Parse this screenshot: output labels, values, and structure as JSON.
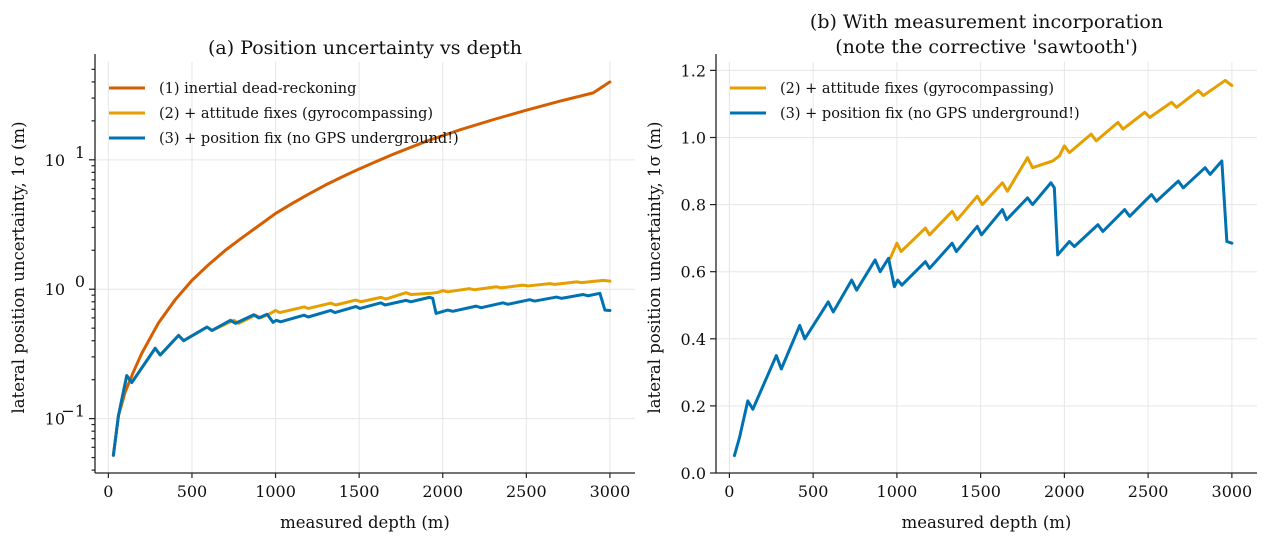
{
  "chart_data": [
    {
      "type": "line",
      "title": "(a) Position uncertainty vs depth",
      "xlabel": "measured depth (m)",
      "ylabel": "lateral position uncertainty, 1σ (m)",
      "xlim": [
        -80,
        3150
      ],
      "ylim": [
        0.038,
        57
      ],
      "yscale": "log",
      "xticks": [
        0,
        500,
        1000,
        1500,
        2000,
        2500,
        3000
      ],
      "xtick_labels": [
        "0",
        "500",
        "1000",
        "1500",
        "2000",
        "2500",
        "3000"
      ],
      "yticks": [
        0.1,
        1,
        10
      ],
      "ytick_labels": [
        {
          "base": "10",
          "exp": "−1"
        },
        {
          "base": "10",
          "exp": "0"
        },
        {
          "base": "10",
          "exp": "1"
        }
      ],
      "grid": true,
      "legend_position": "upper-left",
      "series": [
        {
          "name": "(1) inertial dead-reckoning",
          "color": "#D55E00",
          "points": [
            [
              30,
              0.052
            ],
            [
              60,
              0.105
            ],
            [
              100,
              0.16
            ],
            [
              150,
              0.23
            ],
            [
              200,
              0.32
            ],
            [
              300,
              0.55
            ],
            [
              400,
              0.83
            ],
            [
              500,
              1.17
            ],
            [
              600,
              1.55
            ],
            [
              700,
              2.0
            ],
            [
              800,
              2.5
            ],
            [
              900,
              3.1
            ],
            [
              1000,
              3.85
            ],
            [
              1100,
              4.6
            ],
            [
              1200,
              5.45
            ],
            [
              1300,
              6.4
            ],
            [
              1400,
              7.4
            ],
            [
              1500,
              8.5
            ],
            [
              1700,
              11.0
            ],
            [
              1900,
              13.9
            ],
            [
              2100,
              17.0
            ],
            [
              2300,
              20.4
            ],
            [
              2500,
              24.2
            ],
            [
              2700,
              28.4
            ],
            [
              2900,
              32.9
            ],
            [
              3000,
              40.0
            ]
          ]
        },
        {
          "name": "(2) + attitude fixes (gyrocompassing)",
          "color": "#E69F00",
          "points": [
            [
              30,
              0.052
            ],
            [
              60,
              0.105
            ],
            [
              110,
              0.215
            ],
            [
              140,
              0.19
            ],
            [
              280,
              0.35
            ],
            [
              310,
              0.31
            ],
            [
              420,
              0.44
            ],
            [
              450,
              0.4
            ],
            [
              590,
              0.51
            ],
            [
              620,
              0.48
            ],
            [
              750,
              0.575
            ],
            [
              780,
              0.545
            ],
            [
              880,
              0.63
            ],
            [
              910,
              0.6
            ],
            [
              960,
              0.64
            ],
            [
              1000,
              0.685
            ],
            [
              1025,
              0.66
            ],
            [
              1170,
              0.73
            ],
            [
              1195,
              0.71
            ],
            [
              1330,
              0.78
            ],
            [
              1360,
              0.755
            ],
            [
              1480,
              0.825
            ],
            [
              1510,
              0.8
            ],
            [
              1630,
              0.865
            ],
            [
              1660,
              0.84
            ],
            [
              1780,
              0.94
            ],
            [
              1810,
              0.91
            ],
            [
              1930,
              0.93
            ],
            [
              1970,
              0.945
            ],
            [
              2000,
              0.975
            ],
            [
              2030,
              0.955
            ],
            [
              2160,
              1.01
            ],
            [
              2190,
              0.99
            ],
            [
              2320,
              1.045
            ],
            [
              2350,
              1.025
            ],
            [
              2480,
              1.075
            ],
            [
              2510,
              1.06
            ],
            [
              2640,
              1.105
            ],
            [
              2670,
              1.09
            ],
            [
              2800,
              1.14
            ],
            [
              2830,
              1.125
            ],
            [
              2960,
              1.17
            ],
            [
              3000,
              1.155
            ]
          ]
        },
        {
          "name": "(3) + position fix (no GPS underground!)",
          "color": "#0072B2",
          "points": [
            [
              30,
              0.052
            ],
            [
              60,
              0.105
            ],
            [
              110,
              0.215
            ],
            [
              140,
              0.19
            ],
            [
              280,
              0.35
            ],
            [
              310,
              0.31
            ],
            [
              420,
              0.44
            ],
            [
              450,
              0.4
            ],
            [
              590,
              0.51
            ],
            [
              620,
              0.48
            ],
            [
              730,
              0.575
            ],
            [
              760,
              0.545
            ],
            [
              870,
              0.635
            ],
            [
              900,
              0.6
            ],
            [
              950,
              0.64
            ],
            [
              985,
              0.555
            ],
            [
              1005,
              0.575
            ],
            [
              1030,
              0.56
            ],
            [
              1170,
              0.63
            ],
            [
              1195,
              0.61
            ],
            [
              1330,
              0.685
            ],
            [
              1355,
              0.66
            ],
            [
              1480,
              0.735
            ],
            [
              1505,
              0.71
            ],
            [
              1630,
              0.785
            ],
            [
              1655,
              0.755
            ],
            [
              1780,
              0.82
            ],
            [
              1810,
              0.8
            ],
            [
              1920,
              0.865
            ],
            [
              1940,
              0.85
            ],
            [
              1960,
              0.65
            ],
            [
              2030,
              0.69
            ],
            [
              2060,
              0.675
            ],
            [
              2200,
              0.74
            ],
            [
              2230,
              0.72
            ],
            [
              2360,
              0.785
            ],
            [
              2390,
              0.765
            ],
            [
              2520,
              0.83
            ],
            [
              2550,
              0.81
            ],
            [
              2680,
              0.87
            ],
            [
              2710,
              0.85
            ],
            [
              2840,
              0.91
            ],
            [
              2870,
              0.89
            ],
            [
              2940,
              0.93
            ],
            [
              2970,
              0.69
            ],
            [
              3000,
              0.685
            ]
          ]
        }
      ]
    },
    {
      "type": "line",
      "title": "(b) With measurement incorporation",
      "subtitle": "(note the corrective 'sawtooth')",
      "xlabel": "measured depth (m)",
      "ylabel": "lateral position uncertainty, 1σ (m)",
      "xlim": [
        -80,
        3150
      ],
      "ylim": [
        0,
        1.225
      ],
      "yscale": "linear",
      "xticks": [
        0,
        500,
        1000,
        1500,
        2000,
        2500,
        3000
      ],
      "xtick_labels": [
        "0",
        "500",
        "1000",
        "1500",
        "2000",
        "2500",
        "3000"
      ],
      "yticks": [
        0.0,
        0.2,
        0.4,
        0.6,
        0.8,
        1.0,
        1.2
      ],
      "ytick_labels": [
        "0.0",
        "0.2",
        "0.4",
        "0.6",
        "0.8",
        "1.0",
        "1.2"
      ],
      "grid": true,
      "legend_position": "upper-left",
      "series": [
        {
          "name": "(2) + attitude fixes (gyrocompassing)",
          "color": "#E69F00",
          "points": [
            [
              960,
              0.64
            ],
            [
              1000,
              0.685
            ],
            [
              1025,
              0.66
            ],
            [
              1170,
              0.73
            ],
            [
              1195,
              0.71
            ],
            [
              1330,
              0.78
            ],
            [
              1360,
              0.755
            ],
            [
              1480,
              0.825
            ],
            [
              1510,
              0.8
            ],
            [
              1630,
              0.865
            ],
            [
              1660,
              0.84
            ],
            [
              1780,
              0.94
            ],
            [
              1810,
              0.91
            ],
            [
              1930,
              0.93
            ],
            [
              1970,
              0.945
            ],
            [
              2000,
              0.975
            ],
            [
              2030,
              0.955
            ],
            [
              2160,
              1.01
            ],
            [
              2190,
              0.99
            ],
            [
              2320,
              1.045
            ],
            [
              2350,
              1.025
            ],
            [
              2480,
              1.075
            ],
            [
              2510,
              1.06
            ],
            [
              2640,
              1.105
            ],
            [
              2670,
              1.09
            ],
            [
              2800,
              1.14
            ],
            [
              2830,
              1.125
            ],
            [
              2960,
              1.17
            ],
            [
              3000,
              1.155
            ]
          ]
        },
        {
          "name": "(3) + position fix (no GPS underground!)",
          "color": "#0072B2",
          "points": [
            [
              30,
              0.052
            ],
            [
              60,
              0.105
            ],
            [
              110,
              0.215
            ],
            [
              140,
              0.19
            ],
            [
              280,
              0.35
            ],
            [
              310,
              0.31
            ],
            [
              420,
              0.44
            ],
            [
              450,
              0.4
            ],
            [
              590,
              0.51
            ],
            [
              620,
              0.48
            ],
            [
              730,
              0.575
            ],
            [
              760,
              0.545
            ],
            [
              870,
              0.635
            ],
            [
              900,
              0.6
            ],
            [
              950,
              0.64
            ],
            [
              985,
              0.555
            ],
            [
              1005,
              0.575
            ],
            [
              1030,
              0.56
            ],
            [
              1170,
              0.63
            ],
            [
              1195,
              0.61
            ],
            [
              1330,
              0.685
            ],
            [
              1355,
              0.66
            ],
            [
              1480,
              0.735
            ],
            [
              1505,
              0.71
            ],
            [
              1630,
              0.785
            ],
            [
              1655,
              0.755
            ],
            [
              1780,
              0.82
            ],
            [
              1810,
              0.8
            ],
            [
              1920,
              0.865
            ],
            [
              1940,
              0.85
            ],
            [
              1960,
              0.65
            ],
            [
              2030,
              0.69
            ],
            [
              2060,
              0.675
            ],
            [
              2200,
              0.74
            ],
            [
              2230,
              0.72
            ],
            [
              2360,
              0.785
            ],
            [
              2390,
              0.765
            ],
            [
              2520,
              0.83
            ],
            [
              2550,
              0.81
            ],
            [
              2680,
              0.87
            ],
            [
              2710,
              0.85
            ],
            [
              2840,
              0.91
            ],
            [
              2870,
              0.89
            ],
            [
              2940,
              0.93
            ],
            [
              2970,
              0.69
            ],
            [
              3000,
              0.685
            ]
          ]
        }
      ]
    }
  ]
}
